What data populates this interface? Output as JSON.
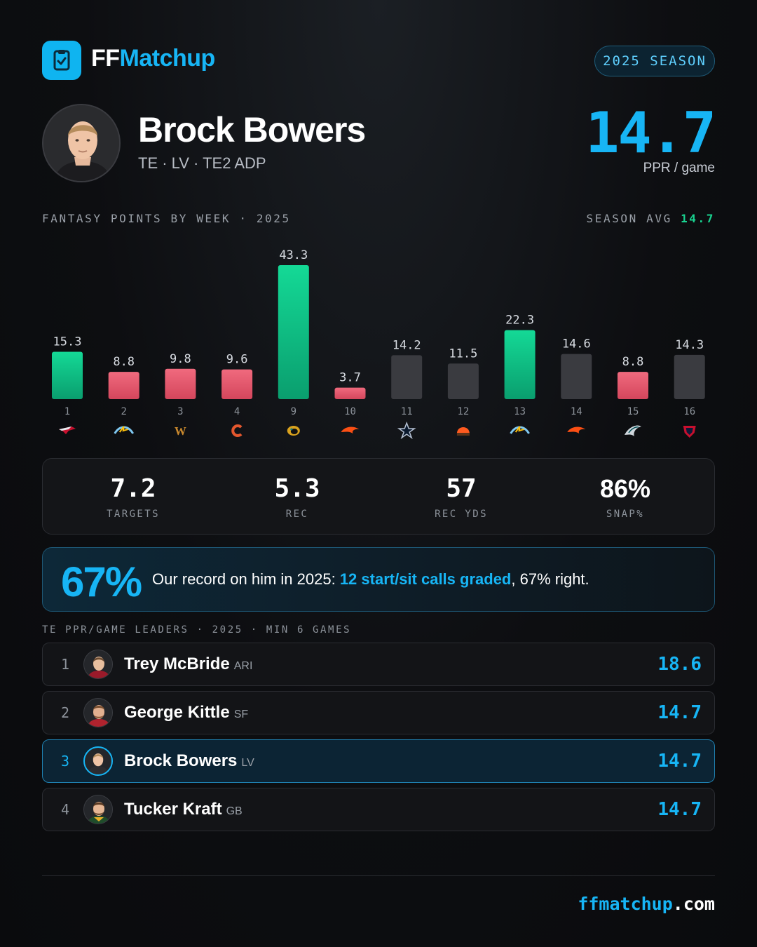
{
  "brand": {
    "part1": "FF",
    "part2": "Matchup",
    "icon": "clipboard-check-icon",
    "color": "#0fb4f0"
  },
  "season_pill": "2025 SEASON",
  "player": {
    "name": "Brock Bowers",
    "subtitle": "TE · LV · TE2 ADP",
    "ppr_value": "14.7",
    "ppr_label": "PPR / game"
  },
  "chart_section": {
    "label": "FANTASY POINTS BY WEEK · 2025",
    "avg_label": "SEASON AVG",
    "avg_value": "14.7"
  },
  "chart_data": {
    "type": "bar",
    "categories": [
      "1",
      "2",
      "3",
      "4",
      "9",
      "10",
      "11",
      "12",
      "13",
      "14",
      "15",
      "16"
    ],
    "values": [
      15.3,
      8.8,
      9.8,
      9.6,
      43.3,
      3.7,
      14.2,
      11.5,
      22.3,
      14.6,
      8.8,
      14.3
    ],
    "value_labels": [
      "15.3",
      "8.8",
      "9.8",
      "9.6",
      "43.3",
      "3.7",
      "14.2",
      "11.5",
      "22.3",
      "14.6",
      "8.8",
      "14.3"
    ],
    "status": [
      "good",
      "bad",
      "bad",
      "bad",
      "good",
      "bad",
      "neutral",
      "neutral",
      "good",
      "neutral",
      "bad",
      "neutral"
    ],
    "opponent_icons": [
      "patriots-logo-icon",
      "chargers-logo-icon",
      "commanders-logo-icon",
      "bears-logo-icon",
      "jaguars-logo-icon",
      "broncos-logo-icon",
      "cowboys-logo-icon",
      "browns-logo-icon",
      "chargers-logo-icon",
      "broncos-logo-icon",
      "eagles-logo-icon",
      "texans-logo-icon"
    ],
    "colors": {
      "good": "#10c989",
      "bad": "#e7566c",
      "neutral": "#3a3b40"
    },
    "ylim": [
      0,
      43.3
    ]
  },
  "stats": [
    {
      "value": "7.2",
      "label": "TARGETS"
    },
    {
      "value": "5.3",
      "label": "REC"
    },
    {
      "value": "57",
      "label": "REC YDS"
    },
    {
      "value": "86%",
      "label": "SNAP%"
    }
  ],
  "record": {
    "pct": "67%",
    "text_before": "Our record on him in 2025: ",
    "text_highlight": "12 start/sit calls graded",
    "text_after": ", 67% right."
  },
  "leaders": {
    "label": "TE PPR/GAME LEADERS · 2025 · MIN 6 GAMES",
    "rows": [
      {
        "rank": "1",
        "name": "Trey McBride",
        "team": "ARI",
        "value": "18.6",
        "jersey": "#9b1a2a"
      },
      {
        "rank": "2",
        "name": "George Kittle",
        "team": "SF",
        "value": "14.7",
        "jersey": "#b0232e"
      },
      {
        "rank": "3",
        "name": "Brock Bowers",
        "team": "LV",
        "value": "14.7",
        "jersey": "#2b2c30"
      },
      {
        "rank": "4",
        "name": "Tucker Kraft",
        "team": "GB",
        "value": "14.7",
        "jersey": "#1f4d2b"
      }
    ]
  },
  "footer": {
    "site1": "ffmatchup",
    "site2": ".com"
  }
}
